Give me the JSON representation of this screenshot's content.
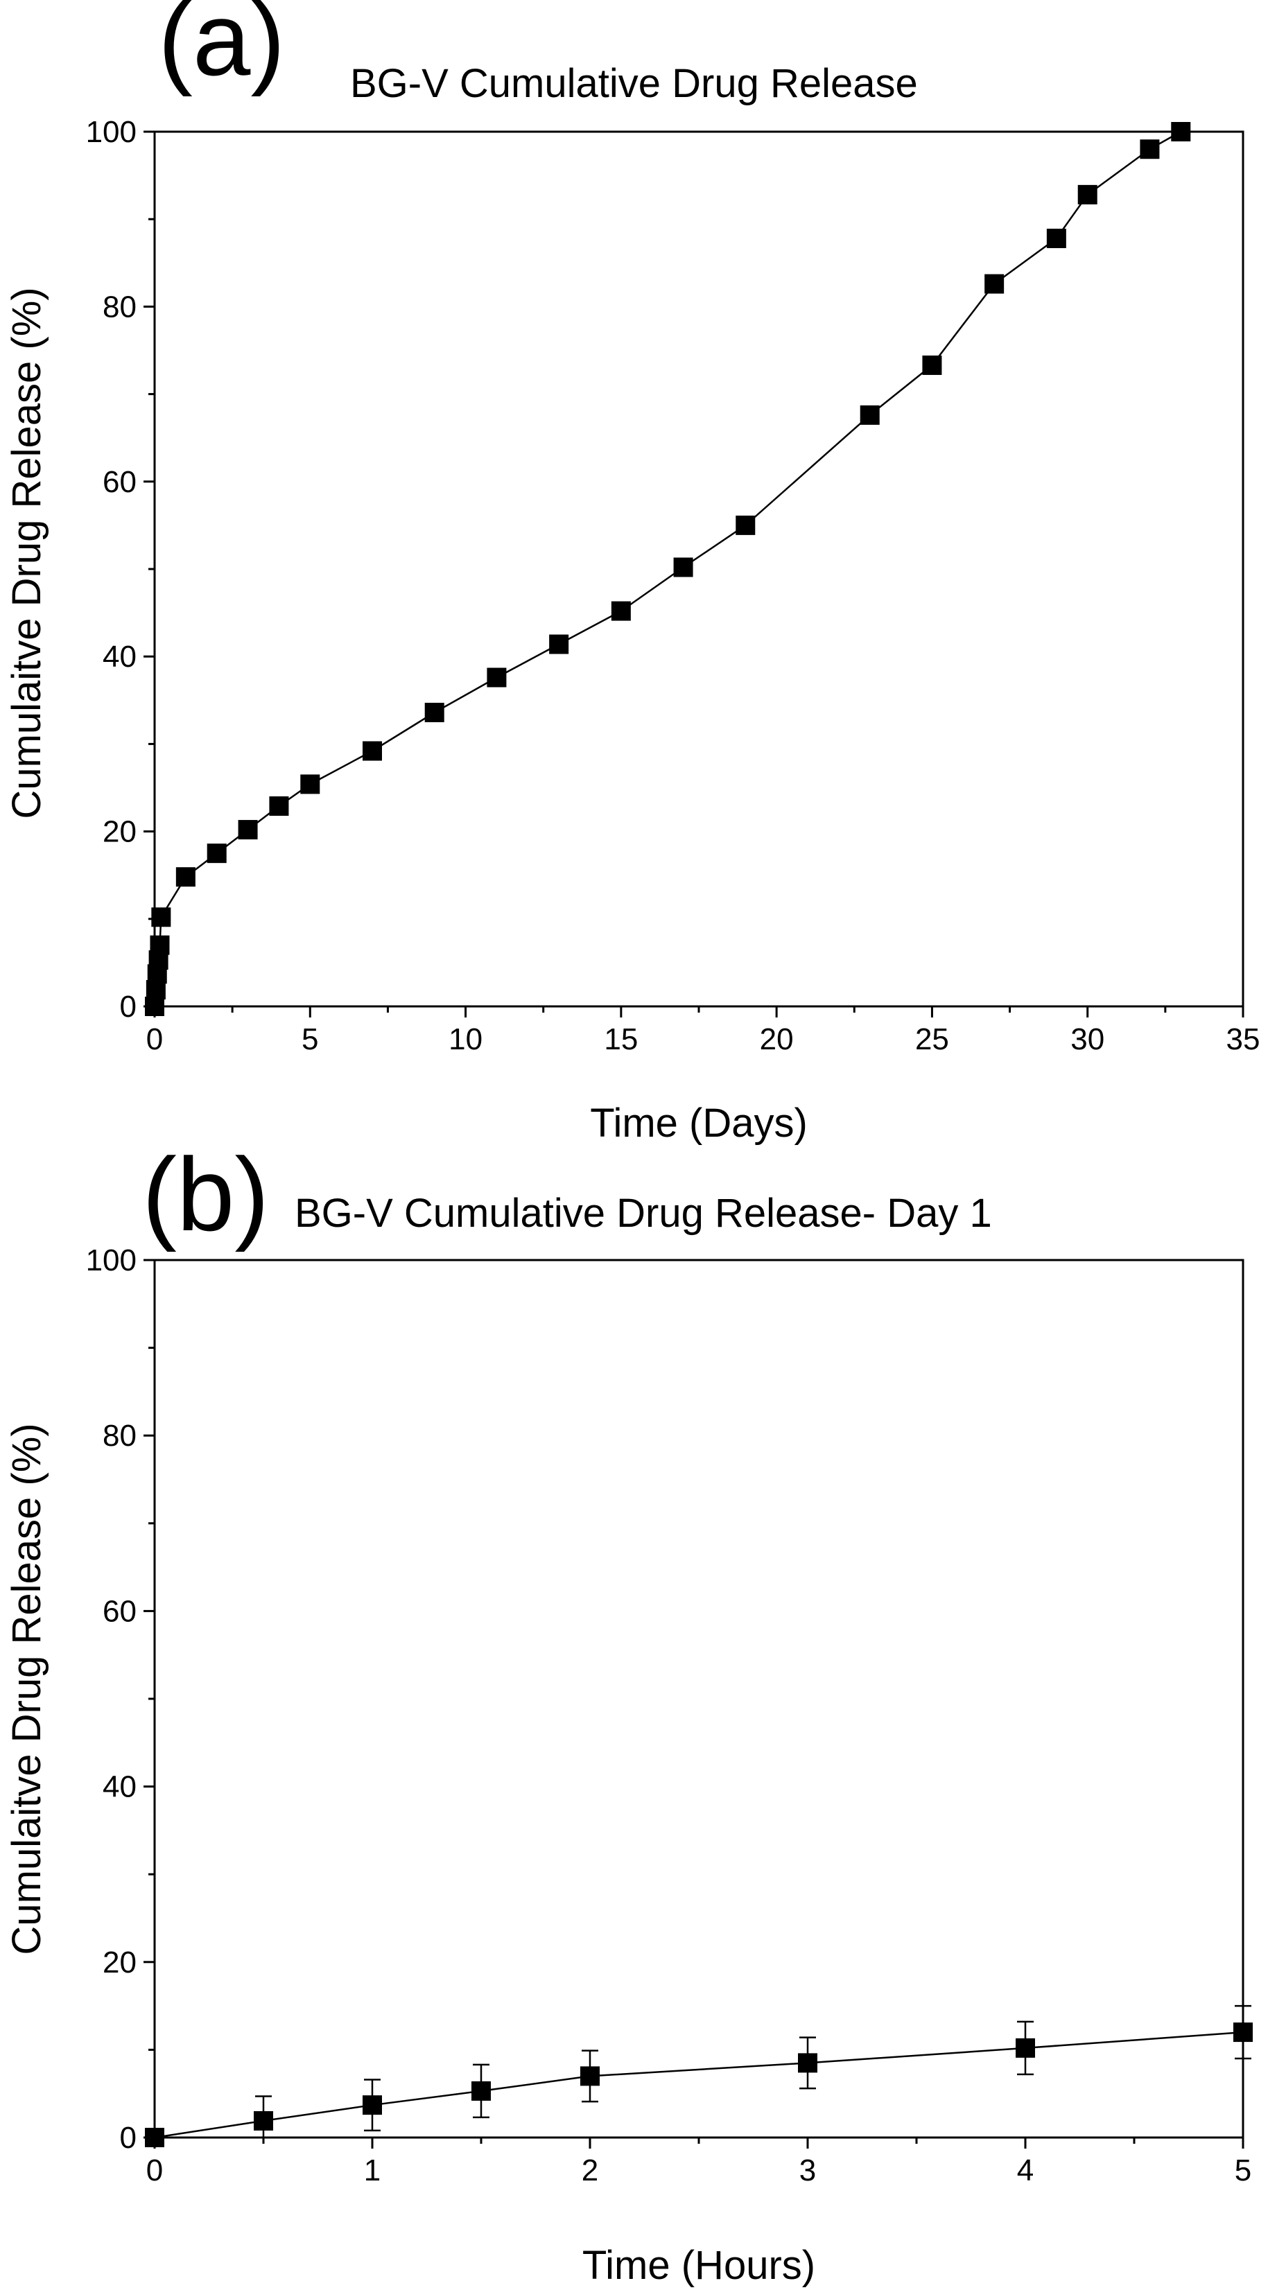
{
  "chart_data": [
    {
      "panel_label": "(a)",
      "type": "line",
      "title": "BG-V Cumulative Drug Release",
      "xlabel": "Time (Days)",
      "ylabel": "Cumulaitve Drug Release (%)",
      "xlim": [
        0,
        35
      ],
      "ylim": [
        0,
        100
      ],
      "xticks": [
        0,
        5,
        10,
        15,
        20,
        25,
        30,
        35
      ],
      "yticks": [
        0,
        20,
        40,
        60,
        80,
        100
      ],
      "grid": false,
      "legend": "none",
      "marker": "square",
      "color": "#000000",
      "series": [
        {
          "x": [
            0,
            0.0417,
            0.0833,
            0.125,
            0.1667,
            0.2083,
            1,
            2,
            3,
            4,
            5,
            7,
            9,
            11,
            13,
            15,
            17,
            19,
            23,
            25,
            27,
            29,
            30,
            32,
            33
          ],
          "y": [
            0,
            1.9,
            3.7,
            5.3,
            7.0,
            10.2,
            14.8,
            17.5,
            20.2,
            22.9,
            25.4,
            29.2,
            33.6,
            37.6,
            41.4,
            45.2,
            50.2,
            55.0,
            67.6,
            73.3,
            82.6,
            87.8,
            92.8,
            98.0,
            100
          ]
        }
      ]
    },
    {
      "panel_label": "(b)",
      "type": "line",
      "title": "BG-V Cumulative Drug Release- Day 1",
      "xlabel": "Time (Hours)",
      "ylabel": "Cumulaitve Drug Release (%)",
      "xlim": [
        0,
        5
      ],
      "ylim": [
        0,
        100
      ],
      "xticks": [
        0,
        1,
        2,
        3,
        4,
        5
      ],
      "yticks": [
        0,
        20,
        40,
        60,
        80,
        100
      ],
      "grid": false,
      "legend": "none",
      "marker": "square",
      "color": "#000000",
      "series": [
        {
          "x": [
            0,
            0.5,
            1,
            1.5,
            2,
            3,
            4,
            5
          ],
          "y": [
            0,
            1.9,
            3.7,
            5.3,
            7.0,
            8.5,
            10.2,
            12.0
          ],
          "error": [
            0,
            2.8,
            2.9,
            3.0,
            2.9,
            2.9,
            3.0,
            3.0
          ]
        }
      ]
    }
  ]
}
